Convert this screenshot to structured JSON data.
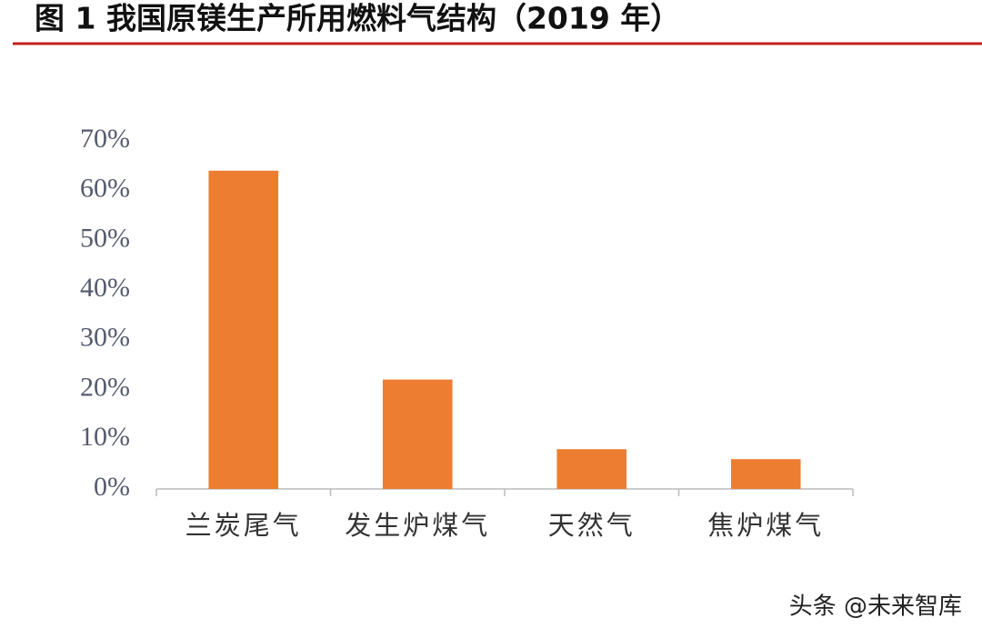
{
  "chart_data": {
    "type": "bar",
    "title": "图 1  我国原镁生产所用燃料气结构（2019 年）",
    "categories": [
      "兰炭尾气",
      "发生炉煤气",
      "天然气",
      "焦炉煤气"
    ],
    "values": [
      64,
      22,
      8,
      6
    ],
    "color": "#ed7d31",
    "ylim": [
      0,
      70
    ],
    "yticks": [
      {
        "value": 0,
        "label": "0%"
      },
      {
        "value": 10,
        "label": "10%"
      },
      {
        "value": 20,
        "label": "20%"
      },
      {
        "value": 30,
        "label": "30%"
      },
      {
        "value": 40,
        "label": "40%"
      },
      {
        "value": 50,
        "label": "50%"
      },
      {
        "value": 60,
        "label": "60%"
      },
      {
        "value": 70,
        "label": "70%"
      }
    ],
    "grid": false
  },
  "watermark": "头条 @未来智库"
}
